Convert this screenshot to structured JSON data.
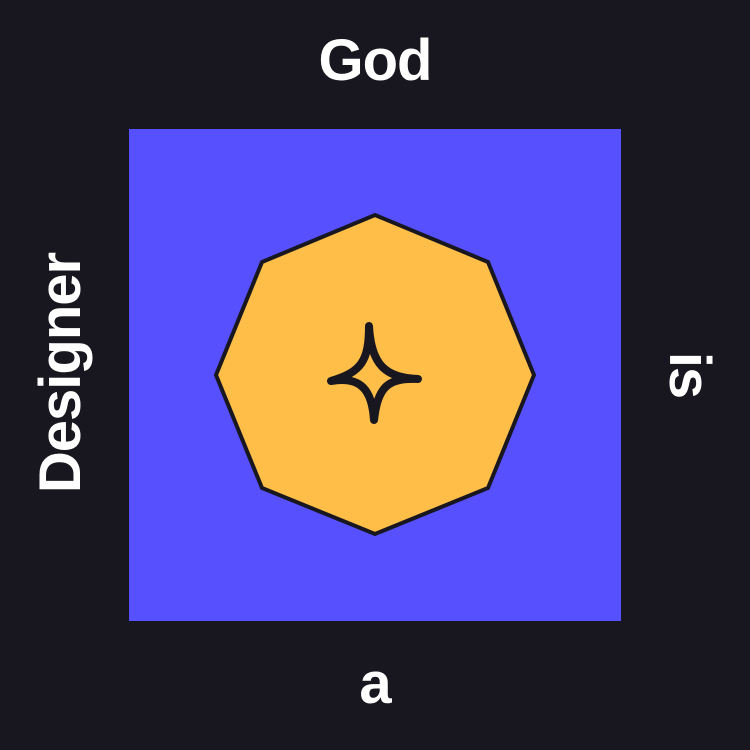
{
  "words": {
    "top": "God",
    "right": "is",
    "bottom": "a",
    "left": "Designer"
  },
  "colors": {
    "background": "#18171f",
    "panel": "#5650fe",
    "octagon": "#ffbe48",
    "outline": "#18171f",
    "text": "#ffffff"
  },
  "icons": {
    "center": "sparkle-icon"
  }
}
